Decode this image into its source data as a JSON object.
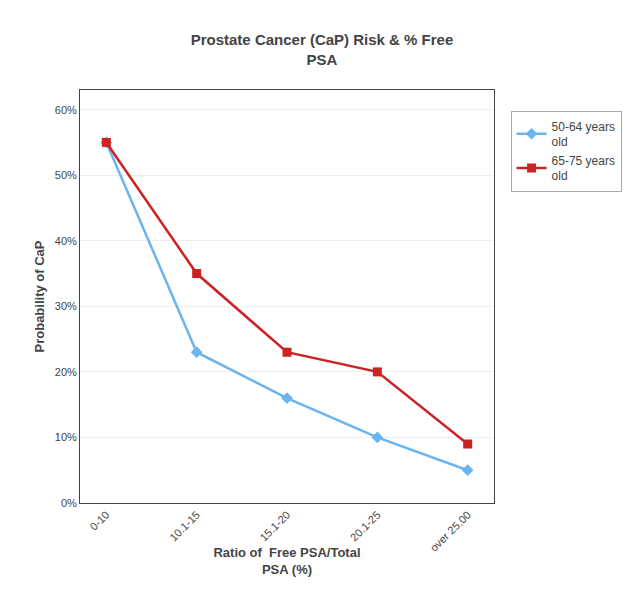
{
  "chart_data": {
    "type": "line",
    "title": "Prostate Cancer (CaP) Risk & % Free\nPSA",
    "xlabel": "Ratio of  Free PSA/Total\nPSA (%)",
    "ylabel": "Probability of CaP",
    "categories": [
      "0-10",
      "10.1-15",
      "15.1-20",
      "20.1-25",
      "over 25.00"
    ],
    "series": [
      {
        "name": "50-64 years\nold",
        "color": "#6ab4f0",
        "marker": "diamond",
        "values": [
          0.55,
          0.23,
          0.16,
          0.1,
          0.05
        ]
      },
      {
        "name": "65-75 years\nold",
        "color": "#cc2222",
        "marker": "square",
        "values": [
          0.55,
          0.35,
          0.23,
          0.2,
          0.09
        ]
      }
    ],
    "ylim": [
      0,
      0.63
    ],
    "yticks": [
      {
        "value": 0.0,
        "label": "0%"
      },
      {
        "value": 0.1,
        "label": "10%"
      },
      {
        "value": 0.2,
        "label": "20%"
      },
      {
        "value": 0.3,
        "label": "30%"
      },
      {
        "value": 0.4,
        "label": "40%"
      },
      {
        "value": 0.5,
        "label": "50%"
      },
      {
        "value": 0.6,
        "label": "60%"
      }
    ],
    "grid": true,
    "legend": "upper right"
  }
}
